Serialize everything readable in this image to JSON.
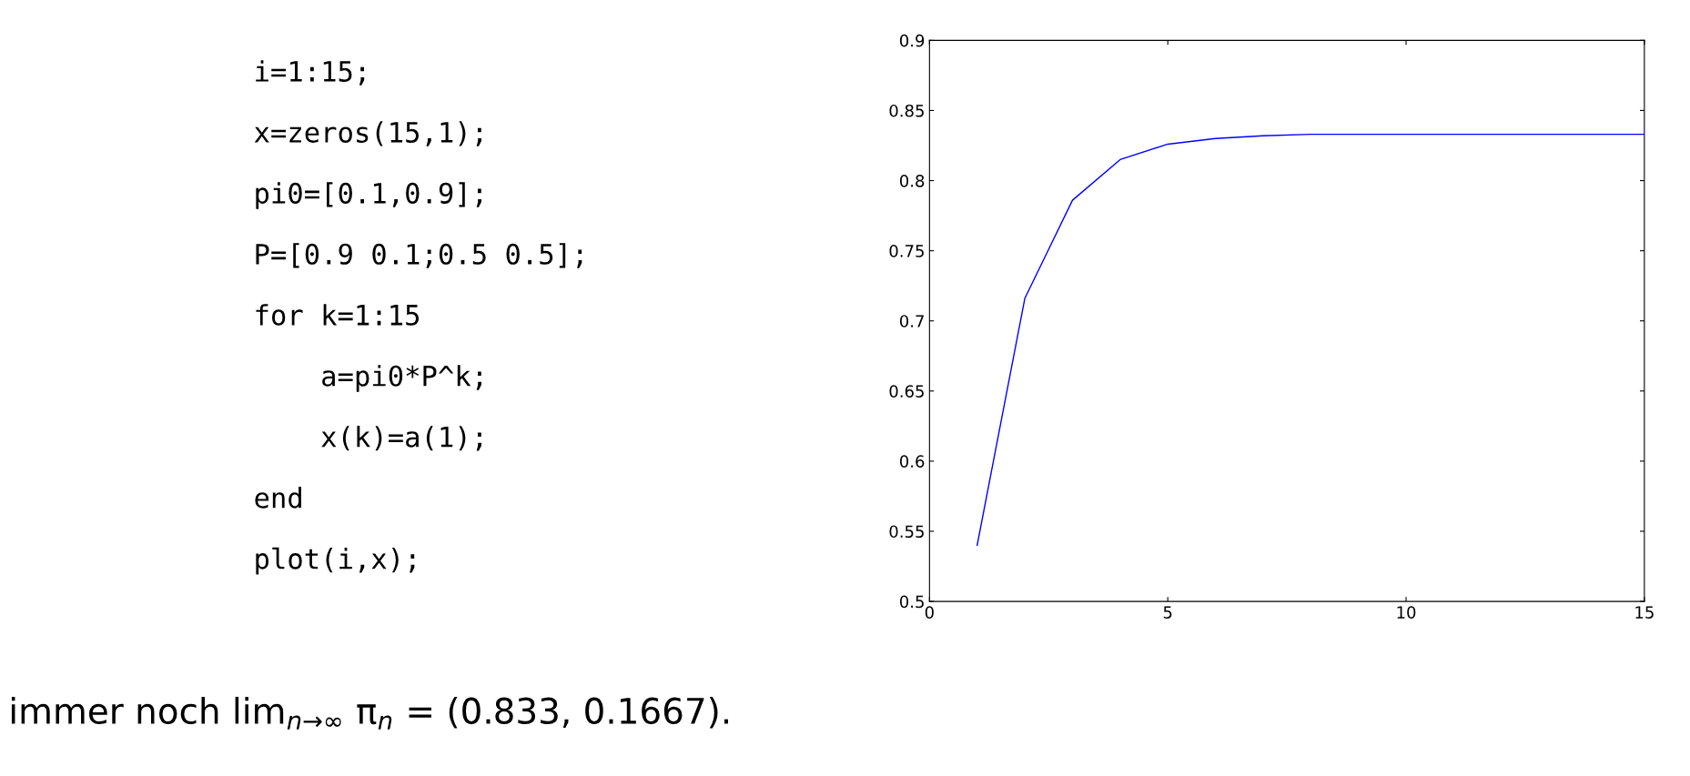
{
  "chart_data": {
    "type": "line",
    "x": [
      1,
      2,
      3,
      4,
      5,
      6,
      7,
      8,
      9,
      10,
      11,
      12,
      13,
      14,
      15
    ],
    "series": [
      {
        "color": "#0000ff",
        "values": [
          0.54,
          0.716,
          0.786,
          0.815,
          0.826,
          0.83,
          0.832,
          0.833,
          0.833,
          0.833,
          0.833,
          0.833,
          0.833,
          0.833,
          0.833
        ]
      }
    ],
    "xlim": [
      0,
      15
    ],
    "xticks": [
      0,
      5,
      10,
      15
    ],
    "ylim": [
      0.5,
      0.9
    ],
    "yticks": [
      {
        "value": 0.5,
        "label": "0.5"
      },
      {
        "value": 0.55,
        "label": "0.55"
      },
      {
        "value": 0.6,
        "label": "0.6"
      },
      {
        "value": 0.65,
        "label": "0.65"
      },
      {
        "value": 0.7,
        "label": "0.7"
      },
      {
        "value": 0.75,
        "label": "0.75"
      },
      {
        "value": 0.8,
        "label": "0.8"
      },
      {
        "value": 0.85,
        "label": "0.85"
      },
      {
        "value": 0.9,
        "label": "0.9"
      }
    ],
    "grid": false,
    "legend": false,
    "marker": "none",
    "line_style": "solid",
    "annotations": [
      "i=1:15;",
      "x=zeros(15,1);",
      "pi0=[0.1,0.9];",
      "P=[0.9 0.1;0.5 0.5];",
      "for k=1:15",
      "    a=pi0*P^k;",
      "    x(k)=a(1);",
      "end",
      "plot(i,x);",
      "immer noch lim$_{n→∞}$ π$_{n}$ = (0.833, 0.1667)."
    ]
  }
}
